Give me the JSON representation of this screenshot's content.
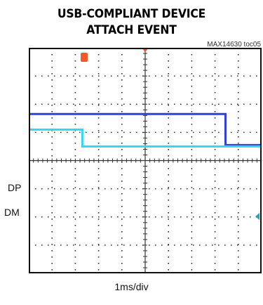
{
  "title_line1": "USB-COMPLIANT DEVICE",
  "title_line2": "ATTACH EVENT",
  "toc_label": "MAX14630 toc05",
  "chart_data": {
    "type": "line",
    "title": "USB-COMPLIANT DEVICE ATTACH EVENT",
    "xlabel": "1ms/div",
    "ylabel": "",
    "x_divisions": 10,
    "y_divisions": 8,
    "grid": true,
    "series": [
      {
        "name": "DP",
        "color": "#3340d6",
        "points": [
          [
            0,
            2.35
          ],
          [
            8.45,
            2.35
          ],
          [
            8.45,
            3.45
          ],
          [
            10,
            3.45
          ]
        ]
      },
      {
        "name": "DM",
        "color": "#33d6ee",
        "points": [
          [
            0,
            2.9
          ],
          [
            2.3,
            2.9
          ],
          [
            2.3,
            3.5
          ],
          [
            10,
            3.5
          ]
        ]
      }
    ]
  },
  "colors": {
    "trigger_marker": "#f05a28",
    "ground_marker": "#1aa6c0",
    "grid": "#333333"
  }
}
